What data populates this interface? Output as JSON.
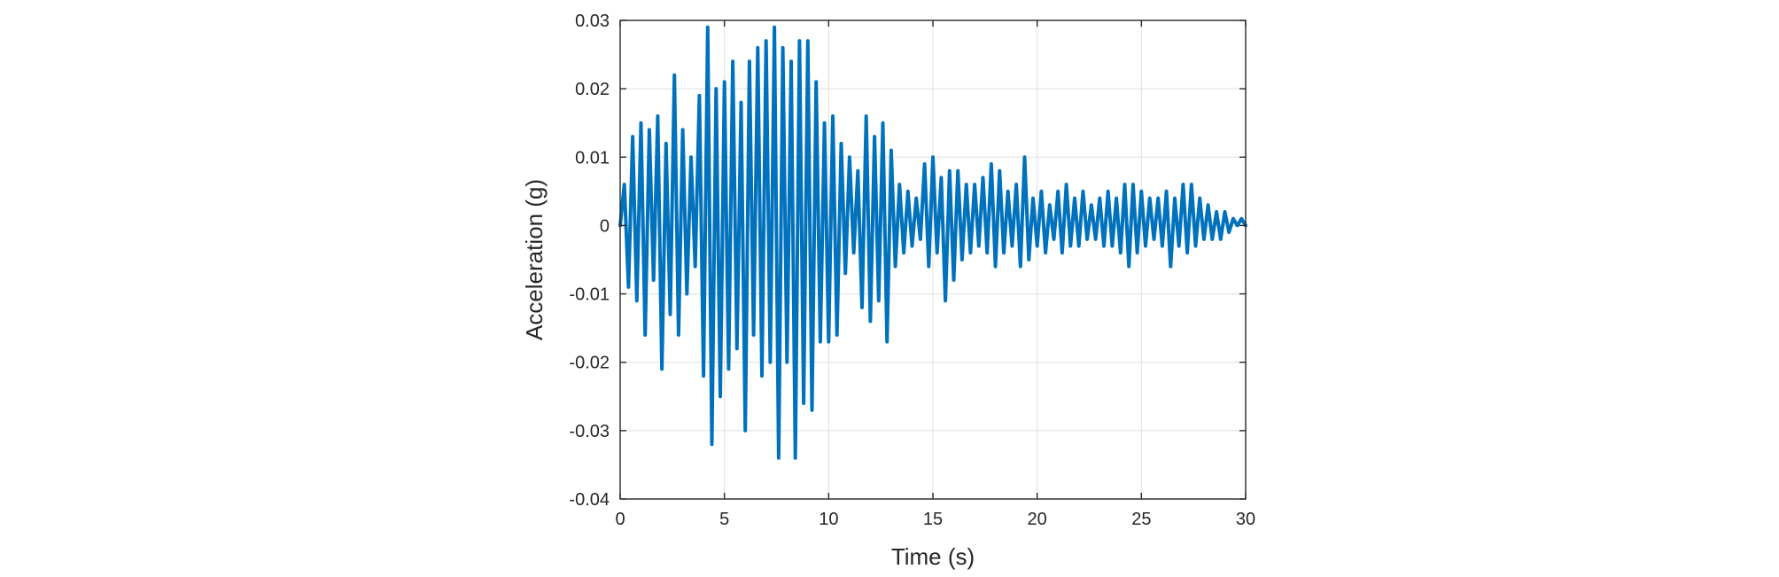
{
  "chart_data": {
    "type": "line",
    "title": "",
    "xlabel": "Time (s)",
    "ylabel": "Acceleration (g)",
    "xlim": [
      0,
      30
    ],
    "ylim": [
      -0.04,
      0.03
    ],
    "grid": true,
    "legend": "none",
    "x_ticks": [
      {
        "value": 0,
        "label": "0"
      },
      {
        "value": 5,
        "label": "5"
      },
      {
        "value": 10,
        "label": "10"
      },
      {
        "value": 15,
        "label": "15"
      },
      {
        "value": 20,
        "label": "20"
      },
      {
        "value": 25,
        "label": "25"
      },
      {
        "value": 30,
        "label": "30"
      }
    ],
    "y_ticks": [
      {
        "value": 0.03,
        "label": "0.03"
      },
      {
        "value": 0.02,
        "label": "0.02"
      },
      {
        "value": 0.01,
        "label": "0.01"
      },
      {
        "value": 0,
        "label": "0"
      },
      {
        "value": -0.01,
        "label": "-0.01"
      },
      {
        "value": -0.02,
        "label": "-0.02"
      },
      {
        "value": -0.03,
        "label": "-0.03"
      },
      {
        "value": -0.04,
        "label": "-0.04"
      }
    ],
    "series": [
      {
        "color": "#0072BD",
        "x": [
          0.0,
          0.2,
          0.4,
          0.6,
          0.8,
          1.0,
          1.2,
          1.4,
          1.6,
          1.8,
          2.0,
          2.2,
          2.4,
          2.6,
          2.8,
          3.0,
          3.2,
          3.4,
          3.6,
          3.8,
          4.0,
          4.2,
          4.4,
          4.6,
          4.8,
          5.0,
          5.2,
          5.4,
          5.6,
          5.8,
          6.0,
          6.2,
          6.4,
          6.6,
          6.8,
          7.0,
          7.2,
          7.4,
          7.6,
          7.8,
          8.0,
          8.2,
          8.4,
          8.6,
          8.8,
          9.0,
          9.2,
          9.4,
          9.6,
          9.8,
          10.0,
          10.2,
          10.4,
          10.6,
          10.8,
          11.0,
          11.2,
          11.4,
          11.6,
          11.8,
          12.0,
          12.2,
          12.4,
          12.6,
          12.8,
          13.0,
          13.2,
          13.4,
          13.6,
          13.8,
          14.0,
          14.2,
          14.4,
          14.6,
          14.8,
          15.0,
          15.2,
          15.4,
          15.6,
          15.8,
          16.0,
          16.2,
          16.4,
          16.6,
          16.8,
          17.0,
          17.2,
          17.4,
          17.6,
          17.8,
          18.0,
          18.2,
          18.4,
          18.6,
          18.8,
          19.0,
          19.2,
          19.4,
          19.6,
          19.8,
          20.0,
          20.2,
          20.4,
          20.6,
          20.8,
          21.0,
          21.2,
          21.4,
          21.6,
          21.8,
          22.0,
          22.2,
          22.4,
          22.6,
          22.8,
          23.0,
          23.2,
          23.4,
          23.6,
          23.8,
          24.0,
          24.2,
          24.4,
          24.6,
          24.8,
          25.0,
          25.2,
          25.4,
          25.6,
          25.8,
          26.0,
          26.2,
          26.4,
          26.6,
          26.8,
          27.0,
          27.2,
          27.4,
          27.6,
          27.8,
          28.0,
          28.2,
          28.4,
          28.6,
          28.8,
          29.0,
          29.2,
          29.4,
          29.6,
          29.8,
          30.0
        ],
        "y": [
          0.0,
          0.006,
          -0.009,
          0.013,
          -0.011,
          0.015,
          -0.016,
          0.014,
          -0.008,
          0.016,
          -0.021,
          0.012,
          -0.013,
          0.022,
          -0.016,
          0.014,
          -0.01,
          0.01,
          -0.006,
          0.019,
          -0.022,
          0.029,
          -0.032,
          0.02,
          -0.025,
          0.021,
          -0.021,
          0.024,
          -0.018,
          0.018,
          -0.03,
          0.024,
          -0.016,
          0.026,
          -0.022,
          0.027,
          -0.02,
          0.029,
          -0.034,
          0.026,
          -0.02,
          0.024,
          -0.034,
          0.027,
          -0.026,
          0.027,
          -0.027,
          0.021,
          -0.017,
          0.015,
          -0.017,
          0.016,
          -0.016,
          0.012,
          -0.007,
          0.01,
          -0.004,
          0.008,
          -0.012,
          0.016,
          -0.014,
          0.013,
          -0.011,
          0.015,
          -0.017,
          0.011,
          -0.006,
          0.006,
          -0.004,
          0.005,
          -0.003,
          0.004,
          -0.002,
          0.009,
          -0.006,
          0.01,
          -0.004,
          0.007,
          -0.011,
          0.008,
          -0.008,
          0.008,
          -0.005,
          0.006,
          -0.004,
          0.006,
          -0.003,
          0.007,
          -0.004,
          0.009,
          -0.006,
          0.008,
          -0.004,
          0.005,
          -0.003,
          0.006,
          -0.006,
          0.01,
          -0.005,
          0.004,
          -0.003,
          0.005,
          -0.004,
          0.003,
          -0.002,
          0.005,
          -0.004,
          0.006,
          -0.003,
          0.004,
          -0.003,
          0.005,
          -0.002,
          0.003,
          -0.002,
          0.004,
          -0.003,
          0.005,
          -0.003,
          0.004,
          -0.004,
          0.006,
          -0.006,
          0.006,
          -0.004,
          0.005,
          -0.003,
          0.004,
          -0.002,
          0.004,
          -0.003,
          0.005,
          -0.006,
          0.004,
          -0.003,
          0.006,
          -0.004,
          0.006,
          -0.003,
          0.004,
          -0.002,
          0.003,
          -0.002,
          0.002,
          -0.002,
          0.002,
          -0.001,
          0.001,
          0.0,
          0.001,
          0.0
        ]
      }
    ]
  }
}
